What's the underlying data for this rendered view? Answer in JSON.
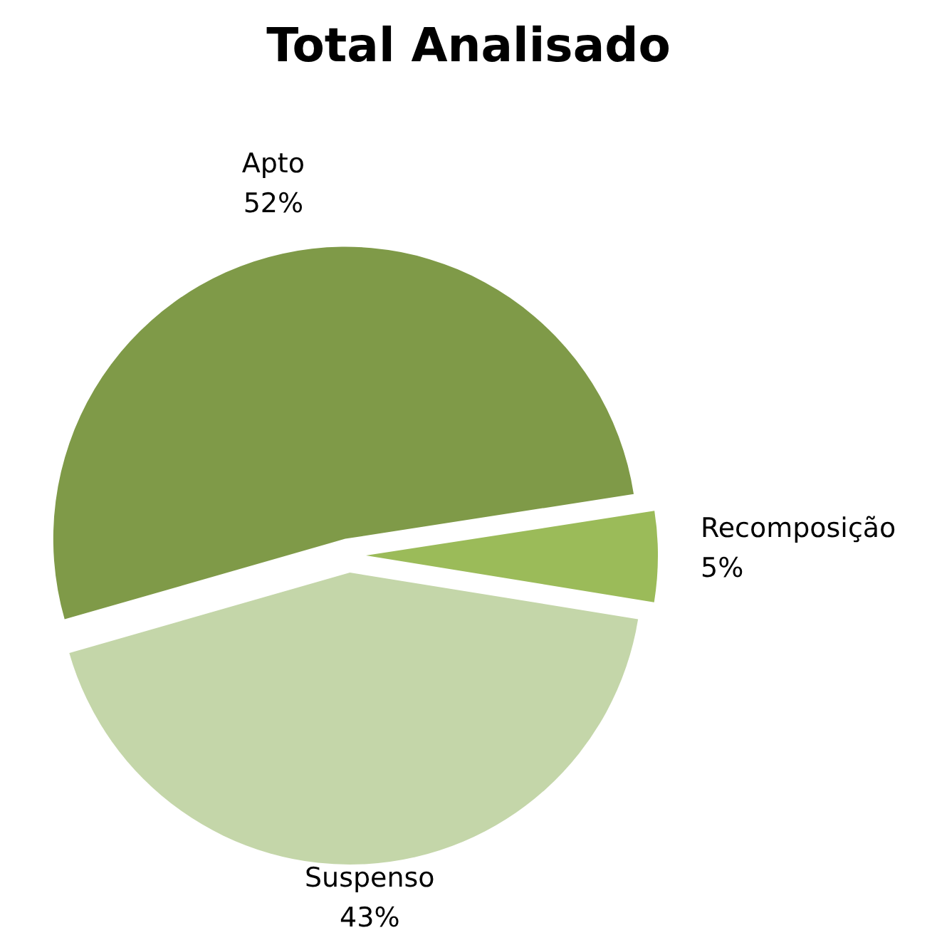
{
  "chart_data": {
    "type": "pie",
    "title": "Total Analisado",
    "categories": [
      "Apto",
      "Recomposição",
      "Suspenso"
    ],
    "values": [
      52,
      5,
      43
    ],
    "colors": [
      "#7f9a48",
      "#9bbb59",
      "#c4d6a9"
    ],
    "value_labels": [
      "52%",
      "5%",
      "43%"
    ],
    "legend": false
  }
}
